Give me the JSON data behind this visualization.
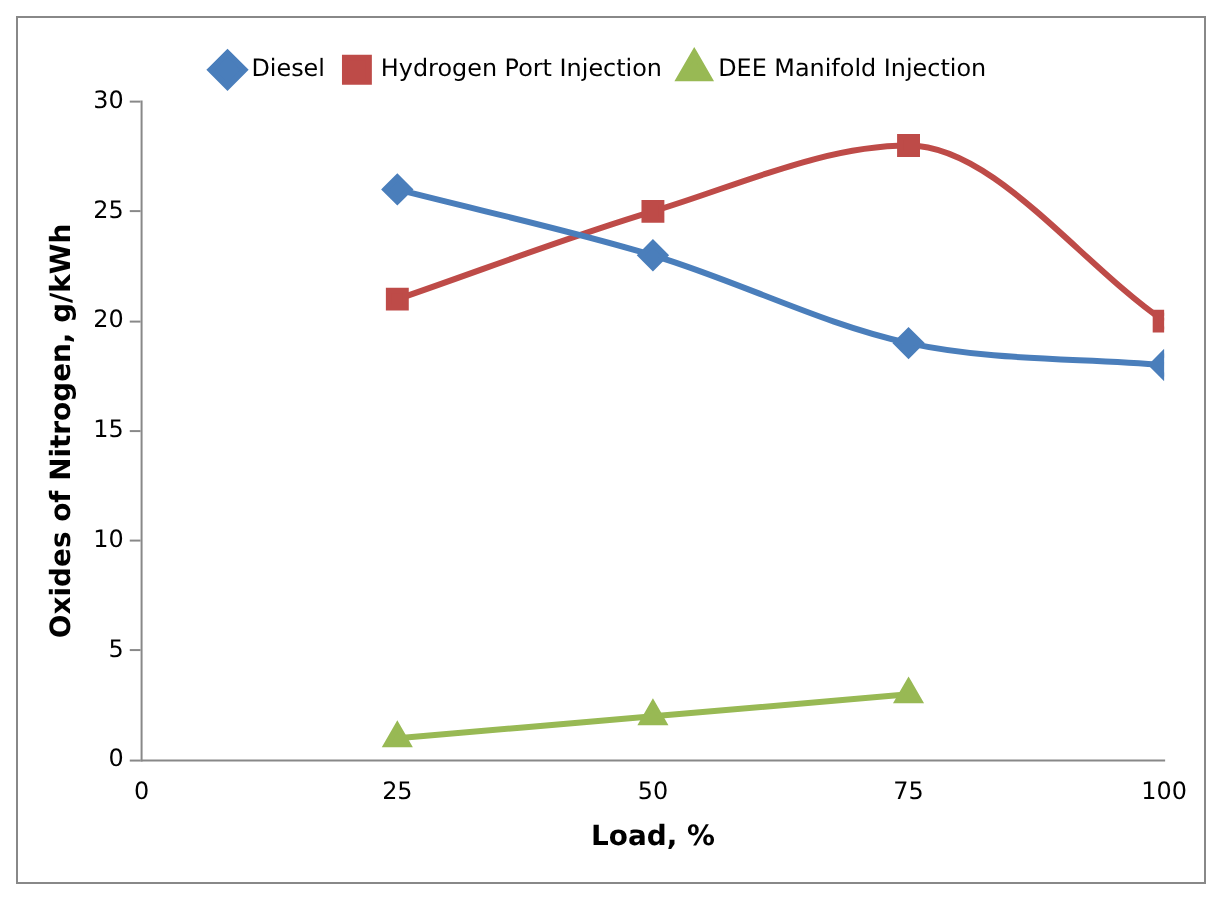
{
  "chart_data": {
    "type": "line",
    "xlabel": "Load, %",
    "ylabel": "Oxides of Nitrogen, g/kWh",
    "x": [
      25,
      50,
      75,
      100
    ],
    "series": [
      {
        "name": "Diesel",
        "color": "#4a7ebb",
        "values": [
          26,
          23,
          19,
          18
        ],
        "marker": "diamond"
      },
      {
        "name": "Hydrogen Port Injection",
        "color": "#be4b48",
        "values": [
          21,
          25,
          28,
          20
        ],
        "marker": "square"
      },
      {
        "name": "DEE Manifold Injection",
        "color": "#98b954",
        "values": [
          1,
          2,
          3,
          null
        ],
        "marker": "triangle"
      }
    ],
    "xlim": [
      0,
      100
    ],
    "xticks": [
      0,
      25,
      50,
      75,
      100
    ],
    "ylim": [
      0,
      30
    ],
    "yticks": [
      0,
      5,
      10,
      15,
      20,
      25,
      30
    ],
    "grid": false,
    "legend": "top"
  }
}
